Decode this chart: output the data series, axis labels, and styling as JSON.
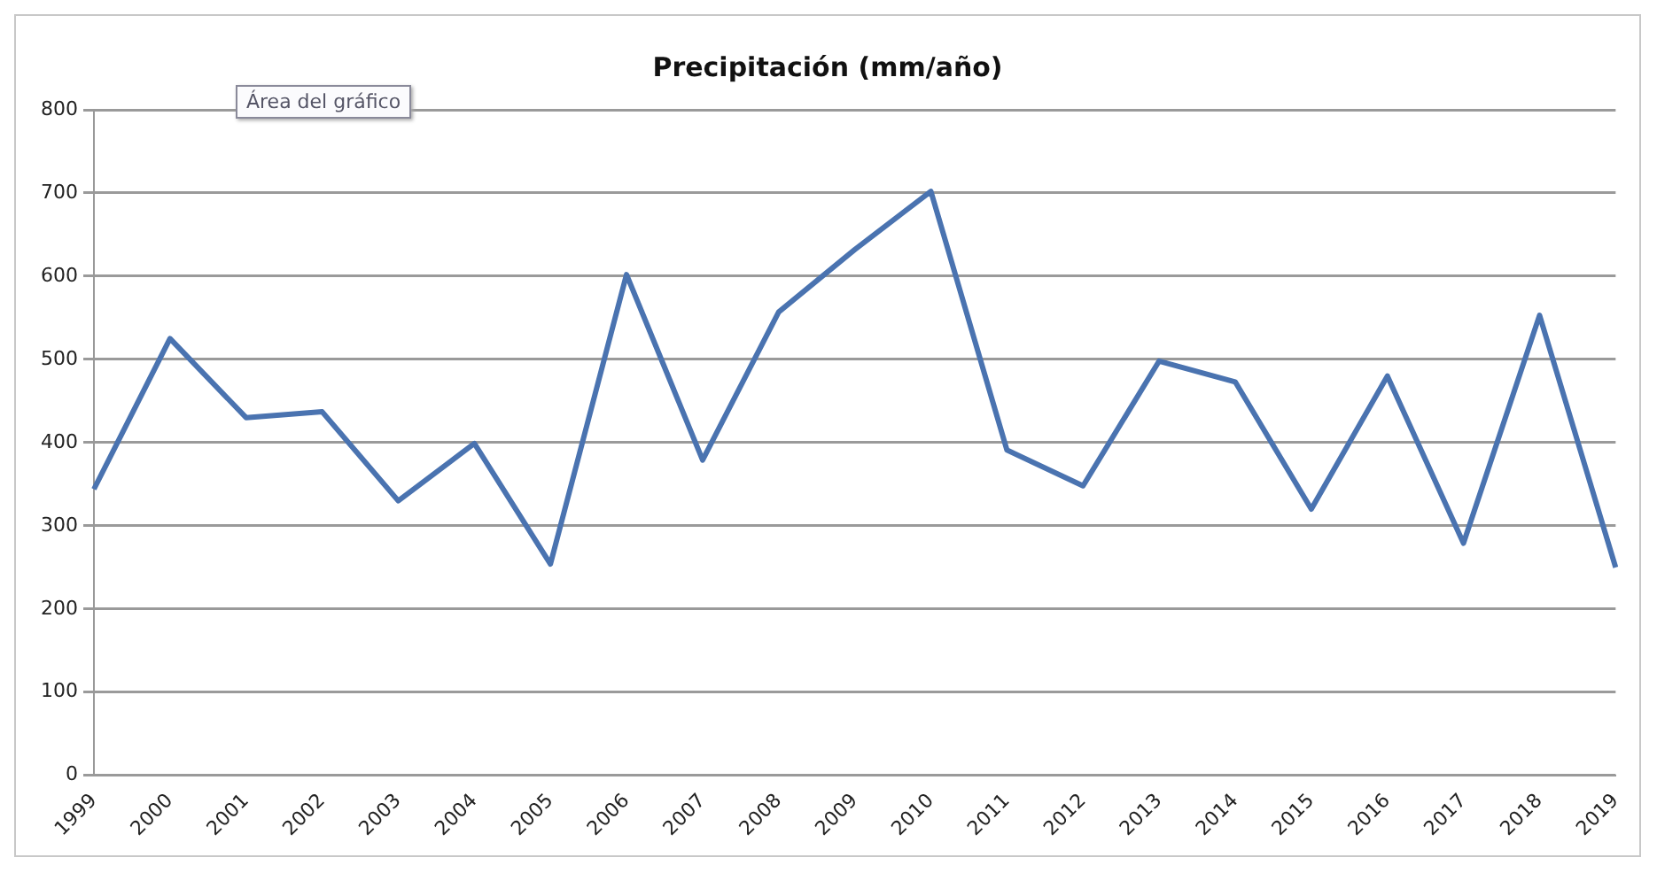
{
  "chart_data": {
    "type": "line",
    "title": "Precipitación (mm/año)",
    "categories": [
      "1999",
      "2000",
      "2001",
      "2002",
      "2003",
      "2004",
      "2005",
      "2006",
      "2007",
      "2008",
      "2009",
      "2010",
      "2011",
      "2012",
      "2013",
      "2014",
      "2015",
      "2016",
      "2017",
      "2018",
      "2019"
    ],
    "series": [
      {
        "color": "#4a73b0",
        "values": [
          344,
          525,
          430,
          437,
          330,
          399,
          254,
          602,
          379,
          557,
          632,
          702,
          391,
          348,
          498,
          473,
          320,
          480,
          279,
          553,
          250
        ]
      }
    ],
    "ylim": [
      0,
      800
    ],
    "yticks": [
      0,
      100,
      200,
      300,
      400,
      500,
      600,
      700,
      800
    ],
    "grid": "y",
    "legend": false,
    "marker": "none",
    "line_style": "solid",
    "annotations": [
      "Área del gráfico"
    ]
  }
}
